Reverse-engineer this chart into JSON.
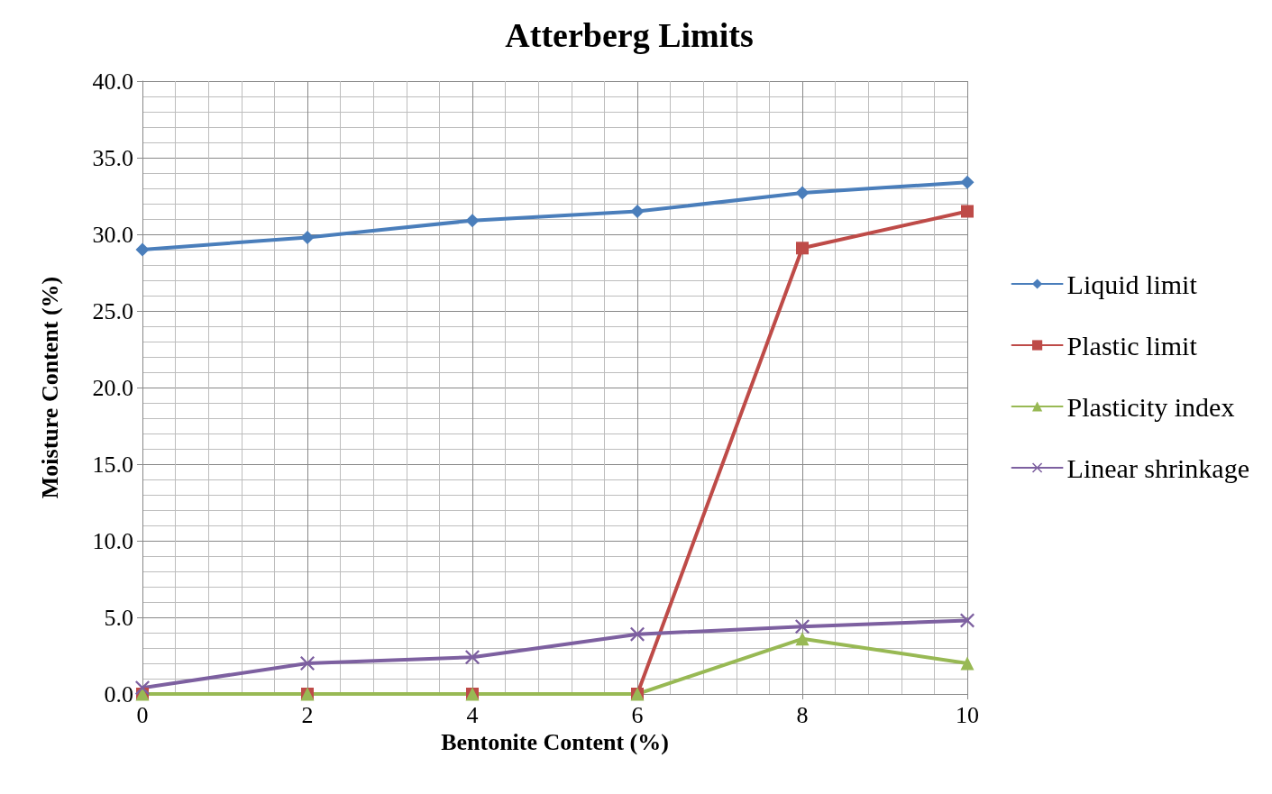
{
  "chart_data": {
    "type": "line",
    "title": "Atterberg Limits",
    "xlabel": "Bentonite Content (%)",
    "ylabel": "Moisture Content (%)",
    "x": [
      0,
      2,
      4,
      6,
      8,
      10
    ],
    "xlim": [
      0,
      10
    ],
    "xticks": [
      0,
      2,
      4,
      6,
      8,
      10
    ],
    "ylim": [
      0,
      40
    ],
    "yticks": [
      {
        "value": 0,
        "label": "0.0"
      },
      {
        "value": 5,
        "label": "5.0"
      },
      {
        "value": 10,
        "label": "10.0"
      },
      {
        "value": 15,
        "label": "15.0"
      },
      {
        "value": 20,
        "label": "20.0"
      },
      {
        "value": 25,
        "label": "25.0"
      },
      {
        "value": 30,
        "label": "30.0"
      },
      {
        "value": 35,
        "label": "35.0"
      },
      {
        "value": 40,
        "label": "40.0"
      }
    ],
    "grid": true,
    "legend": "right",
    "line_style": "solid",
    "series": [
      {
        "name": "Liquid limit",
        "color": "#4a7ebb",
        "marker": "diamond",
        "values": [
          29.0,
          29.8,
          30.9,
          31.5,
          32.7,
          33.4
        ]
      },
      {
        "name": "Plastic limit",
        "color": "#be4b48",
        "marker": "square",
        "values": [
          0,
          0,
          0,
          0,
          29.1,
          31.5
        ]
      },
      {
        "name": "Plasticity index",
        "color": "#98b954",
        "marker": "triangle",
        "values": [
          0,
          0,
          0,
          0,
          3.6,
          2.0
        ]
      },
      {
        "name": "Linear shrinkage",
        "color": "#7d60a0",
        "marker": "cross",
        "values": [
          0.4,
          2.0,
          2.4,
          3.9,
          4.4,
          4.8
        ]
      }
    ]
  }
}
